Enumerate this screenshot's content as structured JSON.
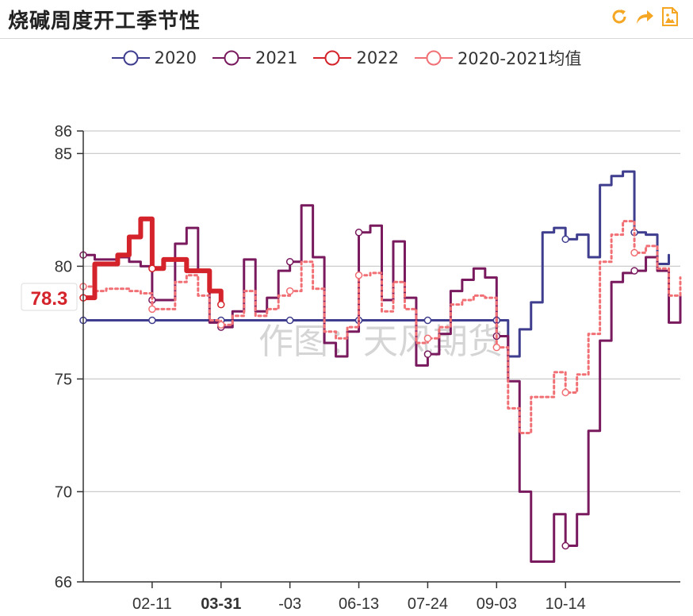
{
  "header": {
    "title": "烧碱周度开工季节性"
  },
  "toolbar": {
    "refresh_icon": "refresh-icon",
    "share_icon": "share-icon",
    "save_image_icon": "save-image-icon",
    "accent": "#f5a623"
  },
  "watermark": "作图：天风期货",
  "chart_data": {
    "type": "line",
    "ylim": [
      66,
      86
    ],
    "yticks": [
      66,
      70,
      75,
      80,
      85,
      86
    ],
    "xlim": [
      0,
      52
    ],
    "xticks": [
      {
        "x": 6,
        "label": "02-11",
        "highlight": false
      },
      {
        "x": 12,
        "label": "03-31",
        "highlight": true
      },
      {
        "x": 18,
        "label": "-03",
        "highlight": false
      },
      {
        "x": 24,
        "label": "06-13",
        "highlight": false
      },
      {
        "x": 30,
        "label": "07-24",
        "highlight": false
      },
      {
        "x": 36,
        "label": "09-03",
        "highlight": false
      },
      {
        "x": 42,
        "label": "10-14",
        "highlight": false
      }
    ],
    "last_value_label": "78.3",
    "series": [
      {
        "name": "2020",
        "color": "#3f3d8e",
        "width": 3,
        "dash": "",
        "values": [
          77.6,
          77.6,
          77.6,
          77.6,
          77.6,
          77.6,
          77.6,
          77.6,
          77.6,
          77.6,
          77.6,
          77.6,
          77.6,
          77.6,
          77.6,
          77.6,
          77.6,
          77.6,
          77.6,
          77.6,
          77.6,
          77.6,
          77.6,
          77.6,
          77.6,
          77.6,
          77.6,
          77.6,
          77.6,
          77.6,
          77.6,
          77.6,
          77.6,
          77.6,
          77.6,
          77.6,
          77.6,
          76.0,
          77.2,
          78.4,
          81.5,
          81.7,
          81.2,
          81.4,
          80.4,
          83.6,
          84.0,
          84.2,
          81.5,
          81.4,
          80.1,
          80.5
        ]
      },
      {
        "name": "2021",
        "color": "#7a1a5e",
        "width": 3,
        "dash": "",
        "values": [
          80.5,
          80.3,
          80.3,
          80.4,
          80.2,
          80.0,
          78.5,
          78.5,
          81.0,
          81.7,
          79.8,
          77.5,
          77.3,
          78.0,
          80.3,
          78.0,
          78.6,
          79.8,
          80.2,
          82.7,
          80.4,
          76.6,
          76.0,
          77.1,
          81.5,
          81.8,
          78.5,
          81.1,
          78.6,
          75.6,
          76.1,
          77.0,
          78.9,
          79.4,
          79.9,
          79.5,
          76.9,
          74.9,
          70.0,
          66.9,
          66.9,
          69.0,
          67.6,
          69.0,
          72.7,
          76.7,
          79.3,
          79.7,
          79.8,
          80.4,
          79.8,
          77.5,
          78.7
        ]
      },
      {
        "name": "2022",
        "color": "#d4232a",
        "width": 6,
        "dash": "",
        "values": [
          78.6,
          80.1,
          80.1,
          80.5,
          81.3,
          82.1,
          79.9,
          80.3,
          80.3,
          79.8,
          79.8,
          78.9,
          78.3
        ]
      },
      {
        "name": "2020-2021均值",
        "color": "#f07075",
        "width": 3,
        "dash": "3,4",
        "values": [
          79.1,
          78.9,
          79.0,
          79.0,
          78.9,
          78.8,
          78.1,
          78.1,
          79.3,
          79.6,
          78.7,
          77.6,
          77.4,
          77.8,
          78.9,
          77.8,
          78.1,
          78.7,
          78.9,
          80.2,
          79.0,
          77.1,
          76.8,
          77.3,
          79.6,
          79.7,
          78.0,
          79.3,
          78.1,
          76.6,
          76.8,
          77.3,
          78.3,
          78.5,
          78.7,
          78.6,
          76.4,
          73.7,
          72.6,
          74.2,
          74.2,
          75.3,
          74.4,
          75.2,
          77.0,
          80.2,
          81.4,
          82.0,
          80.6,
          80.9,
          79.9,
          78.7,
          79.5
        ]
      }
    ]
  }
}
